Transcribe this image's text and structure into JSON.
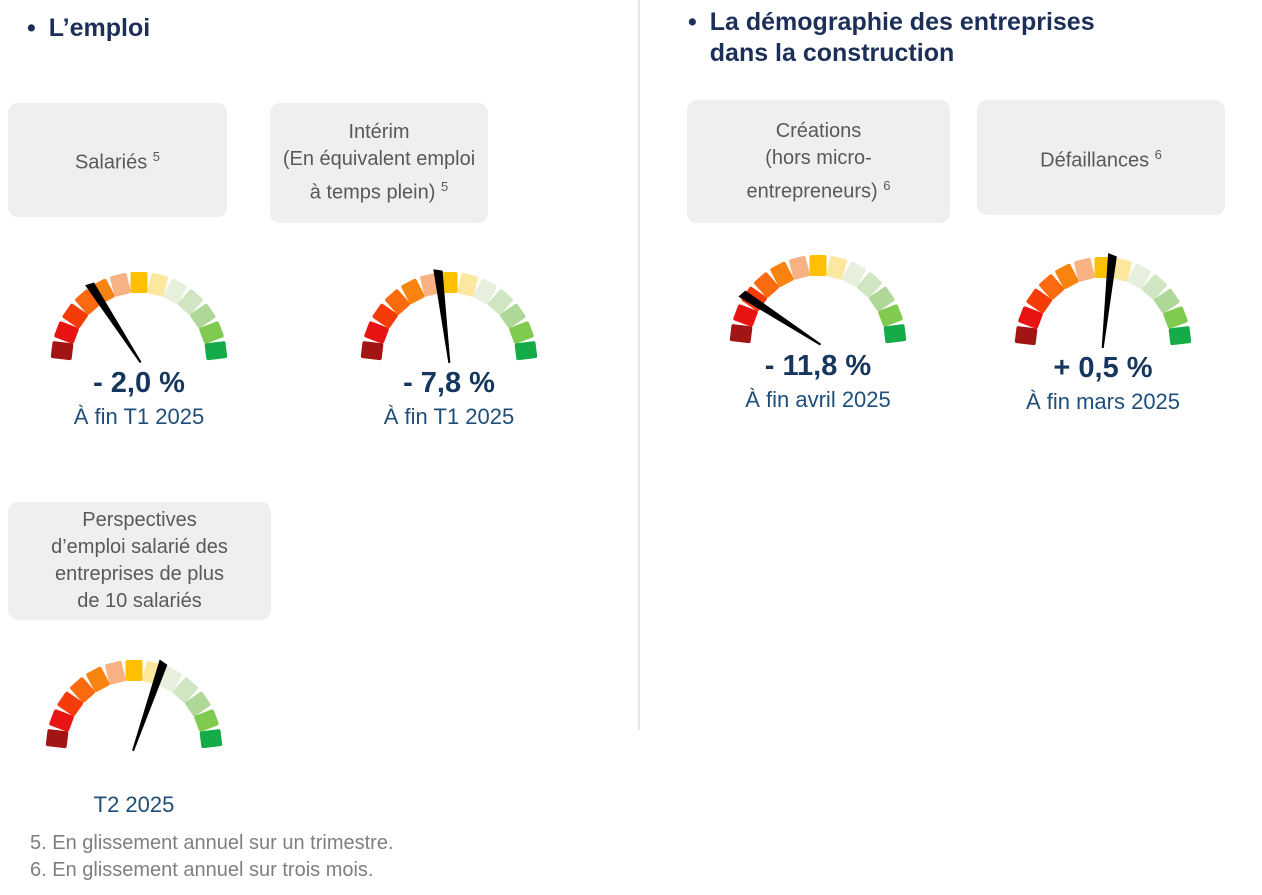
{
  "sections": [
    {
      "id": "emploi",
      "bullet": "•",
      "title_lines": [
        "L’emploi"
      ]
    },
    {
      "id": "demographie",
      "bullet": "•",
      "title_lines": [
        "La démographie des entreprises",
        "dans la construction"
      ]
    }
  ],
  "gauge_style": {
    "segment_colors": [
      "#A31515",
      "#E81313",
      "#F43B08",
      "#FB6A0F",
      "#F9830F",
      "#F8B183",
      "#FFC003",
      "#FCE79E",
      "#E6F0DD",
      "#D0E5C2",
      "#AFD798",
      "#7FCA4F",
      "#16AB49"
    ],
    "needle_color": "#000000",
    "arc_degrees": 180,
    "segment_count": 13
  },
  "chart_data": [
    {
      "type": "gauge",
      "section": "emploi",
      "title_lines": [
        "Salariés"
      ],
      "title_footnote_ref": "5",
      "value": "- 2,0 %",
      "caption": "À fin T1 2025",
      "needle_deg_from_north": -33,
      "scale_note": "red left to green right, 13 segments over 180 degrees"
    },
    {
      "type": "gauge",
      "section": "emploi",
      "title_lines": [
        "Intérim",
        "(En équivalent emploi",
        "à temps plein)"
      ],
      "title_footnote_ref": "5",
      "value": "- 7,8 %",
      "caption": "À fin T1 2025",
      "needle_deg_from_north": -7,
      "scale_note": "red left to green right, 13 segments over 180 degrees"
    },
    {
      "type": "gauge",
      "section": "emploi",
      "title_lines": [
        "Perspectives",
        "d’emploi salarié des",
        "entreprises de plus",
        "de 10 salariés"
      ],
      "title_footnote_ref": "",
      "value": "",
      "caption": "T2 2025",
      "needle_deg_from_north": 19,
      "scale_note": "red left to green right, 13 segments over 180 degrees"
    },
    {
      "type": "gauge",
      "section": "demographie",
      "title_lines": [
        "Créations",
        "(hors micro-",
        "entrepreneurs)"
      ],
      "title_footnote_ref": "6",
      "value": "- 11,8 %",
      "caption": "À fin avril 2025",
      "needle_deg_from_north": -57,
      "scale_note": "red left to green right, 13 segments over 180 degrees"
    },
    {
      "type": "gauge",
      "section": "demographie",
      "title_lines": [
        "Défaillances"
      ],
      "title_footnote_ref": "6",
      "value": "+ 0,5 %",
      "caption": "À fin mars 2025",
      "needle_deg_from_north": 6,
      "scale_note": "red left to green right, 13 segments over 180 degrees"
    }
  ],
  "footnotes": [
    "5. En glissement annuel sur un trimestre.",
    "6. En glissement annuel sur trois mois."
  ],
  "colors": {
    "heading_text": "#1c2f58",
    "value_text": "#17365d",
    "caption_text": "#1f4e79",
    "card_background": "#efefef",
    "card_text": "#595959",
    "footnote_text": "#7f7f7f",
    "divider": "#e6e6e6",
    "needle": "#000000"
  }
}
